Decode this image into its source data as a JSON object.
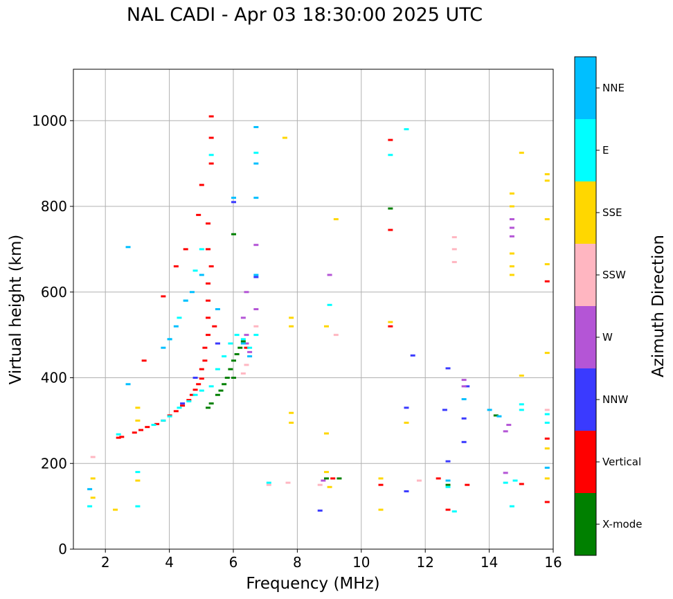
{
  "title": "NAL CADI - Apr 03 18:30:00 2025 UTC",
  "colorbar": {
    "label": "Azimuth Direction",
    "categories": [
      {
        "name": "X-mode",
        "color": "#008000"
      },
      {
        "name": "Vertical",
        "color": "#ff0000"
      },
      {
        "name": "NNW",
        "color": "#3a3aff"
      },
      {
        "name": "W",
        "color": "#b455d6"
      },
      {
        "name": "SSW",
        "color": "#ffb6c1"
      },
      {
        "name": "SSE",
        "color": "#ffd700"
      },
      {
        "name": "E",
        "color": "#00ffff"
      },
      {
        "name": "NNE",
        "color": "#00bfff"
      }
    ]
  },
  "chart_data": {
    "type": "scatter",
    "title": "NAL CADI - Apr 03 18:30:00 2025 UTC",
    "xlabel": "Frequency (MHz)",
    "ylabel": "Virtual height (km)",
    "xlim": [
      1,
      16
    ],
    "ylim": [
      0,
      1120
    ],
    "xticks": [
      2,
      4,
      6,
      8,
      10,
      12,
      14,
      16
    ],
    "yticks": [
      0,
      200,
      400,
      600,
      800,
      1000
    ],
    "grid": true,
    "color_legend": "Azimuth Direction",
    "series": [
      {
        "name": "Vertical",
        "color": "#ff0000",
        "points": [
          [
            2.4,
            260
          ],
          [
            2.5,
            262
          ],
          [
            2.9,
            272
          ],
          [
            3.1,
            278
          ],
          [
            3.3,
            285
          ],
          [
            3.6,
            292
          ],
          [
            3.8,
            300
          ],
          [
            4.0,
            312
          ],
          [
            4.2,
            322
          ],
          [
            4.4,
            335
          ],
          [
            4.6,
            348
          ],
          [
            4.7,
            360
          ],
          [
            4.8,
            372
          ],
          [
            4.9,
            385
          ],
          [
            5.0,
            398
          ],
          [
            5.0,
            420
          ],
          [
            5.1,
            440
          ],
          [
            5.1,
            470
          ],
          [
            5.2,
            500
          ],
          [
            5.2,
            540
          ],
          [
            5.2,
            580
          ],
          [
            5.2,
            620
          ],
          [
            5.3,
            660
          ],
          [
            5.2,
            700
          ],
          [
            5.2,
            760
          ],
          [
            5.0,
            850
          ],
          [
            5.3,
            900
          ],
          [
            5.3,
            960
          ],
          [
            5.3,
            1010
          ],
          [
            3.2,
            440
          ],
          [
            3.8,
            590
          ],
          [
            4.2,
            660
          ],
          [
            4.5,
            700
          ],
          [
            4.9,
            780
          ],
          [
            5.4,
            520
          ],
          [
            5.5,
            480
          ],
          [
            6.4,
            470
          ],
          [
            10.9,
            520
          ],
          [
            10.9,
            745
          ],
          [
            10.9,
            955
          ],
          [
            12.4,
            165
          ],
          [
            12.7,
            92
          ],
          [
            15.8,
            625
          ],
          [
            15.8,
            258
          ],
          [
            15.8,
            110
          ],
          [
            15.0,
            152
          ],
          [
            13.3,
            150
          ],
          [
            9.1,
            165
          ],
          [
            10.6,
            150
          ]
        ]
      },
      {
        "name": "X-mode",
        "color": "#008000",
        "points": [
          [
            5.2,
            330
          ],
          [
            5.3,
            340
          ],
          [
            5.5,
            360
          ],
          [
            5.6,
            370
          ],
          [
            5.7,
            385
          ],
          [
            5.8,
            400
          ],
          [
            5.9,
            420
          ],
          [
            6.0,
            440
          ],
          [
            6.1,
            455
          ],
          [
            6.2,
            470
          ],
          [
            6.3,
            485
          ],
          [
            6.0,
            735
          ],
          [
            6.0,
            400
          ],
          [
            10.9,
            795
          ],
          [
            14.2,
            312
          ],
          [
            12.7,
            150
          ],
          [
            8.9,
            165
          ],
          [
            9.3,
            165
          ]
        ]
      },
      {
        "name": "NNW",
        "color": "#3a3aff",
        "points": [
          [
            4.4,
            340
          ],
          [
            4.8,
            400
          ],
          [
            5.5,
            480
          ],
          [
            6.0,
            810
          ],
          [
            6.7,
            635
          ],
          [
            11.4,
            330
          ],
          [
            11.6,
            452
          ],
          [
            12.7,
            422
          ],
          [
            12.6,
            325
          ],
          [
            12.7,
            205
          ],
          [
            13.2,
            250
          ],
          [
            13.2,
            305
          ],
          [
            13.3,
            380
          ],
          [
            11.4,
            135
          ],
          [
            8.7,
            90
          ]
        ]
      },
      {
        "name": "W",
        "color": "#b455d6",
        "points": [
          [
            6.4,
            500
          ],
          [
            6.4,
            480
          ],
          [
            6.5,
            460
          ],
          [
            6.7,
            710
          ],
          [
            6.7,
            560
          ],
          [
            6.3,
            540
          ],
          [
            14.7,
            770
          ],
          [
            14.7,
            750
          ],
          [
            14.7,
            730
          ],
          [
            14.6,
            290
          ],
          [
            14.5,
            275
          ],
          [
            14.5,
            178
          ],
          [
            9.0,
            640
          ],
          [
            8.8,
            160
          ],
          [
            13.2,
            395
          ],
          [
            13.2,
            380
          ],
          [
            6.4,
            600
          ]
        ]
      },
      {
        "name": "SSW",
        "color": "#ffb6c1",
        "points": [
          [
            6.3,
            410
          ],
          [
            6.4,
            430
          ],
          [
            6.7,
            520
          ],
          [
            12.9,
            728
          ],
          [
            12.9,
            700
          ],
          [
            12.9,
            670
          ],
          [
            15.8,
            325
          ],
          [
            11.8,
            160
          ],
          [
            9.2,
            500
          ],
          [
            8.7,
            150
          ],
          [
            7.1,
            150
          ],
          [
            7.7,
            155
          ],
          [
            1.6,
            215
          ]
        ]
      },
      {
        "name": "SSE",
        "color": "#ffd700",
        "points": [
          [
            7.8,
            540
          ],
          [
            7.8,
            520
          ],
          [
            7.8,
            318
          ],
          [
            7.8,
            295
          ],
          [
            8.9,
            270
          ],
          [
            8.9,
            180
          ],
          [
            9.0,
            145
          ],
          [
            9.2,
            770
          ],
          [
            8.9,
            520
          ],
          [
            10.6,
            165
          ],
          [
            10.6,
            92
          ],
          [
            14.7,
            830
          ],
          [
            14.7,
            800
          ],
          [
            14.7,
            690
          ],
          [
            14.7,
            660
          ],
          [
            14.7,
            640
          ],
          [
            15.0,
            925
          ],
          [
            15.0,
            405
          ],
          [
            15.8,
            875
          ],
          [
            15.8,
            860
          ],
          [
            15.8,
            770
          ],
          [
            15.8,
            665
          ],
          [
            15.8,
            458
          ],
          [
            15.8,
            235
          ],
          [
            15.8,
            165
          ],
          [
            7.6,
            960
          ],
          [
            3.0,
            330
          ],
          [
            3.0,
            300
          ],
          [
            3.0,
            160
          ],
          [
            1.6,
            165
          ],
          [
            1.6,
            120
          ],
          [
            11.4,
            295
          ],
          [
            10.9,
            530
          ],
          [
            2.3,
            92
          ]
        ]
      },
      {
        "name": "E",
        "color": "#00ffff",
        "points": [
          [
            3.5,
            290
          ],
          [
            3.8,
            300
          ],
          [
            4.0,
            310
          ],
          [
            4.3,
            330
          ],
          [
            4.6,
            345
          ],
          [
            4.8,
            360
          ],
          [
            5.0,
            370
          ],
          [
            5.3,
            380
          ],
          [
            5.5,
            420
          ],
          [
            5.7,
            450
          ],
          [
            5.9,
            480
          ],
          [
            6.1,
            500
          ],
          [
            6.3,
            490
          ],
          [
            6.5,
            470
          ],
          [
            6.7,
            500
          ],
          [
            4.0,
            490
          ],
          [
            4.3,
            540
          ],
          [
            4.5,
            580
          ],
          [
            4.8,
            650
          ],
          [
            5.0,
            700
          ],
          [
            5.3,
            920
          ],
          [
            6.7,
            925
          ],
          [
            9.0,
            570
          ],
          [
            10.9,
            920
          ],
          [
            11.4,
            980
          ],
          [
            14.7,
            100
          ],
          [
            15.8,
            295
          ],
          [
            15.8,
            315
          ],
          [
            15.0,
            338
          ],
          [
            15.0,
            325
          ],
          [
            14.8,
            160
          ],
          [
            14.5,
            155
          ],
          [
            12.9,
            88
          ],
          [
            12.7,
            145
          ],
          [
            1.5,
            100
          ],
          [
            3.0,
            100
          ],
          [
            3.0,
            180
          ],
          [
            7.1,
            155
          ],
          [
            2.4,
            268
          ]
        ]
      },
      {
        "name": "NNE",
        "color": "#00bfff",
        "points": [
          [
            3.8,
            470
          ],
          [
            4.0,
            490
          ],
          [
            4.2,
            520
          ],
          [
            4.5,
            580
          ],
          [
            4.7,
            600
          ],
          [
            5.0,
            640
          ],
          [
            5.5,
            560
          ],
          [
            6.3,
            480
          ],
          [
            6.5,
            450
          ],
          [
            6.7,
            820
          ],
          [
            6.7,
            900
          ],
          [
            6.7,
            985
          ],
          [
            6.0,
            820
          ],
          [
            6.7,
            640
          ],
          [
            13.2,
            350
          ],
          [
            14.0,
            325
          ],
          [
            14.3,
            310
          ],
          [
            15.8,
            190
          ],
          [
            12.7,
            160
          ],
          [
            1.5,
            140
          ],
          [
            2.7,
            385
          ],
          [
            2.7,
            705
          ]
        ]
      }
    ]
  }
}
